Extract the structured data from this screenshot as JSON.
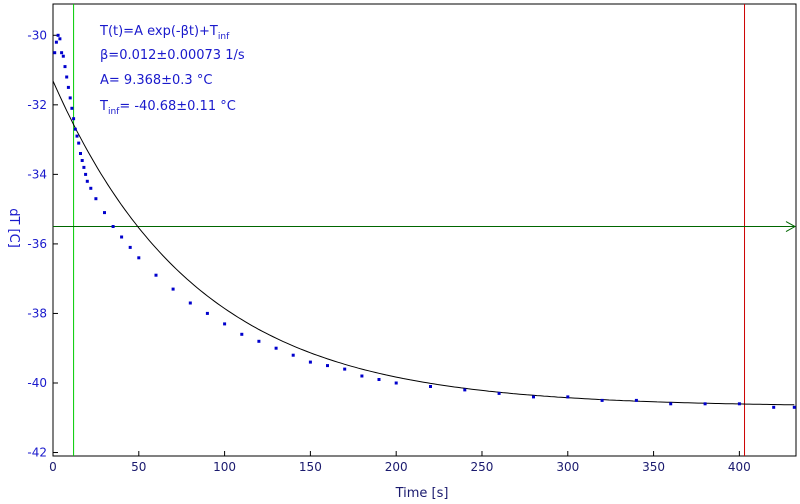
{
  "chart_data": {
    "type": "scatter",
    "title": "",
    "xlabel": "Time [s]",
    "ylabel": "dT [C]",
    "xlim": [
      0,
      433
    ],
    "ylim": [
      -42.1,
      -29.1
    ],
    "x_ticks": [
      0,
      50,
      100,
      150,
      200,
      250,
      300,
      350,
      400
    ],
    "y_ticks": [
      -30,
      -32,
      -34,
      -36,
      -38,
      -40,
      -42
    ],
    "grid": false,
    "legend": "none",
    "colors": {
      "data": "#0000cc",
      "fit": "#000000",
      "text": "#1a1acc",
      "start_marker": "#00cc00",
      "end_marker": "#cc0000",
      "level_marker": "#006600"
    },
    "annotations": {
      "fit_formula": "T(t)=A exp(-βt)+T",
      "fit_formula_sub": "inf",
      "beta": "β=0.012±0.00073 1/s",
      "amplitude": "A= 9.368±0.3 °C",
      "t_inf_prefix": "T",
      "t_inf_sub": "inf",
      "t_inf_value": "= -40.68±0.11 °C"
    },
    "fit": {
      "A": 9.368,
      "beta": 0.012,
      "T_inf": -40.68
    },
    "markers": {
      "start_time": 12,
      "end_time": 403,
      "level": -35.5
    },
    "series": [
      {
        "x": [
          1,
          2,
          3,
          4,
          5,
          6,
          7,
          8,
          9,
          10,
          11,
          12,
          13,
          14,
          15,
          16,
          17,
          18,
          19,
          20,
          22,
          25,
          30,
          35,
          40,
          45,
          50,
          60,
          70,
          80,
          90,
          100,
          110,
          120,
          130,
          140,
          150,
          160,
          170,
          180,
          190,
          200,
          220,
          240,
          260,
          280,
          300,
          320,
          340,
          360,
          380,
          400,
          420,
          432
        ],
        "y": [
          -30.5,
          -30.2,
          -30.0,
          -30.1,
          -30.5,
          -30.6,
          -30.9,
          -31.2,
          -31.5,
          -31.8,
          -32.1,
          -32.4,
          -32.7,
          -32.9,
          -33.1,
          -33.4,
          -33.6,
          -33.8,
          -34.0,
          -34.2,
          -34.4,
          -34.7,
          -35.1,
          -35.5,
          -35.8,
          -36.1,
          -36.4,
          -36.9,
          -37.3,
          -37.7,
          -38.0,
          -38.3,
          -38.6,
          -38.8,
          -39.0,
          -39.2,
          -39.4,
          -39.5,
          -39.6,
          -39.8,
          -39.9,
          -40.0,
          -40.1,
          -40.2,
          -40.3,
          -40.4,
          -40.4,
          -40.5,
          -40.5,
          -40.6,
          -40.6,
          -40.6,
          -40.7,
          -40.7
        ]
      }
    ]
  }
}
